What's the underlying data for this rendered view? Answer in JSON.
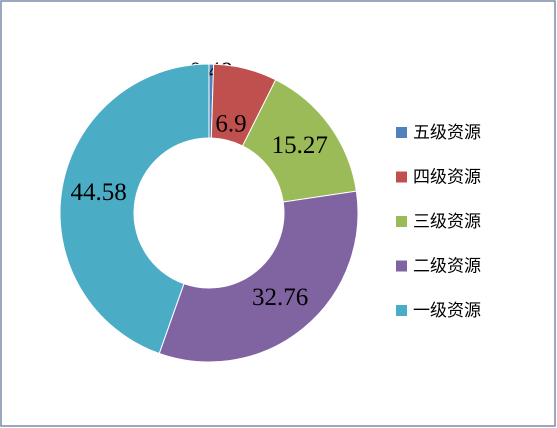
{
  "chart_data": {
    "type": "pie",
    "categories": [
      "五级资源",
      "四级资源",
      "三级资源",
      "二级资源",
      "一级资源"
    ],
    "values": [
      0.49,
      6.9,
      15.27,
      32.76,
      44.58
    ],
    "colors": [
      "#4f81bd",
      "#c0504d",
      "#9bbb59",
      "#8064a2",
      "#4bacc6"
    ],
    "donut": true,
    "legend": "right"
  }
}
